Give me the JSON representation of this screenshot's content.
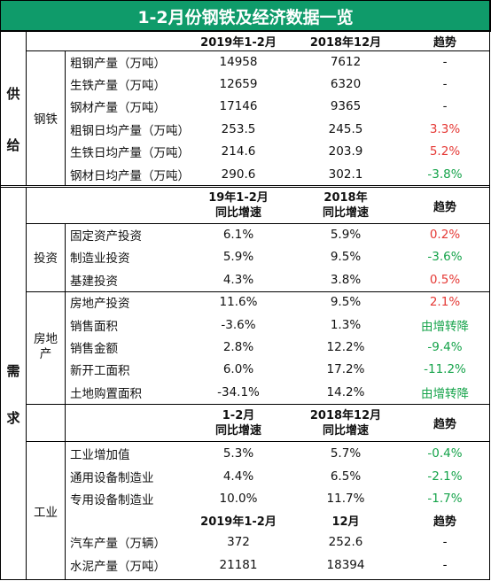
{
  "title": "1-2月份钢铁及经济数据一览",
  "colors": {
    "title_bg": "#0f9b6a",
    "title_fg": "#ffffff",
    "up": "#e53935",
    "down": "#15a34a",
    "neutral": "#111111"
  },
  "supply": {
    "side_label": "供 给",
    "side_label_1": "供",
    "side_label_2": "给",
    "group_label": "钢铁",
    "header": {
      "c1": "2019年1-2月",
      "c2": "2018年12月",
      "c3": "趋势"
    },
    "rows": [
      {
        "name": "粗钢产量（万吨）",
        "v1": "14958",
        "v2": "7612",
        "trend": "-",
        "tone": "neutral"
      },
      {
        "name": "生铁产量（万吨）",
        "v1": "12659",
        "v2": "6320",
        "trend": "-",
        "tone": "neutral"
      },
      {
        "name": "钢材产量（万吨）",
        "v1": "17146",
        "v2": "9365",
        "trend": "-",
        "tone": "neutral"
      },
      {
        "name": "粗钢日均产量（万吨）",
        "v1": "253.5",
        "v2": "245.5",
        "trend": "3.3%",
        "tone": "up"
      },
      {
        "name": "生铁日均产量（万吨）",
        "v1": "214.6",
        "v2": "203.9",
        "trend": "5.2%",
        "tone": "up"
      },
      {
        "name": "钢材日均产量（万吨）",
        "v1": "290.6",
        "v2": "302.1",
        "trend": "-3.8%",
        "tone": "down"
      }
    ]
  },
  "demand": {
    "side_label_1": "需",
    "side_label_2": "求",
    "header1": {
      "c1a": "19年1-2月",
      "c1b": "同比增速",
      "c2a": "2018年",
      "c2b": "同比增速",
      "c3": "趋势"
    },
    "investment": {
      "label": "投资",
      "rows": [
        {
          "name": "固定资产投资",
          "v1": "6.1%",
          "v2": "5.9%",
          "trend": "0.2%",
          "tone": "up"
        },
        {
          "name": "制造业投资",
          "v1": "5.9%",
          "v2": "9.5%",
          "trend": "-3.6%",
          "tone": "down"
        },
        {
          "name": "基建投资",
          "v1": "4.3%",
          "v2": "3.8%",
          "trend": "0.5%",
          "tone": "up"
        }
      ]
    },
    "real_estate": {
      "label_1": "房地",
      "label_2": "产",
      "rows": [
        {
          "name": "房地产投资",
          "v1": "11.6%",
          "v2": "9.5%",
          "trend": "2.1%",
          "tone": "up"
        },
        {
          "name": "销售面积",
          "v1": "-3.6%",
          "v2": "1.3%",
          "trend": "由增转降",
          "tone": "down"
        },
        {
          "name": "销售金额",
          "v1": "2.8%",
          "v2": "12.2%",
          "trend": "-9.4%",
          "tone": "down"
        },
        {
          "name": "新开工面积",
          "v1": "6.0%",
          "v2": "17.2%",
          "trend": "-11.2%",
          "tone": "down"
        },
        {
          "name": "土地购置面积",
          "v1": "-34.1%",
          "v2": "14.2%",
          "trend": "由增转降",
          "tone": "down"
        }
      ]
    },
    "header2": {
      "c1a": "1-2月",
      "c1b": "同比增速",
      "c2a": "2018年12月",
      "c2b": "同比增速",
      "c3": "趋势"
    },
    "industry": {
      "label": "工业",
      "rows": [
        {
          "name": "工业增加值",
          "v1": "5.3%",
          "v2": "5.7%",
          "trend": "-0.4%",
          "tone": "down"
        },
        {
          "name": "通用设备制造业",
          "v1": "4.4%",
          "v2": "6.5%",
          "trend": "-2.1%",
          "tone": "down"
        },
        {
          "name": "专用设备制造业",
          "v1": "10.0%",
          "v2": "11.7%",
          "trend": "-1.7%",
          "tone": "down"
        }
      ],
      "header3": {
        "c1": "2019年1-2月",
        "c2": "12月",
        "c3": "趋势"
      },
      "rows2": [
        {
          "name": "汽车产量（万辆）",
          "v1": "372",
          "v2": "252.6",
          "trend": "-",
          "tone": "neutral"
        },
        {
          "name": "水泥产量（万吨）",
          "v1": "21181",
          "v2": "18394",
          "trend": "-",
          "tone": "neutral"
        }
      ]
    }
  }
}
